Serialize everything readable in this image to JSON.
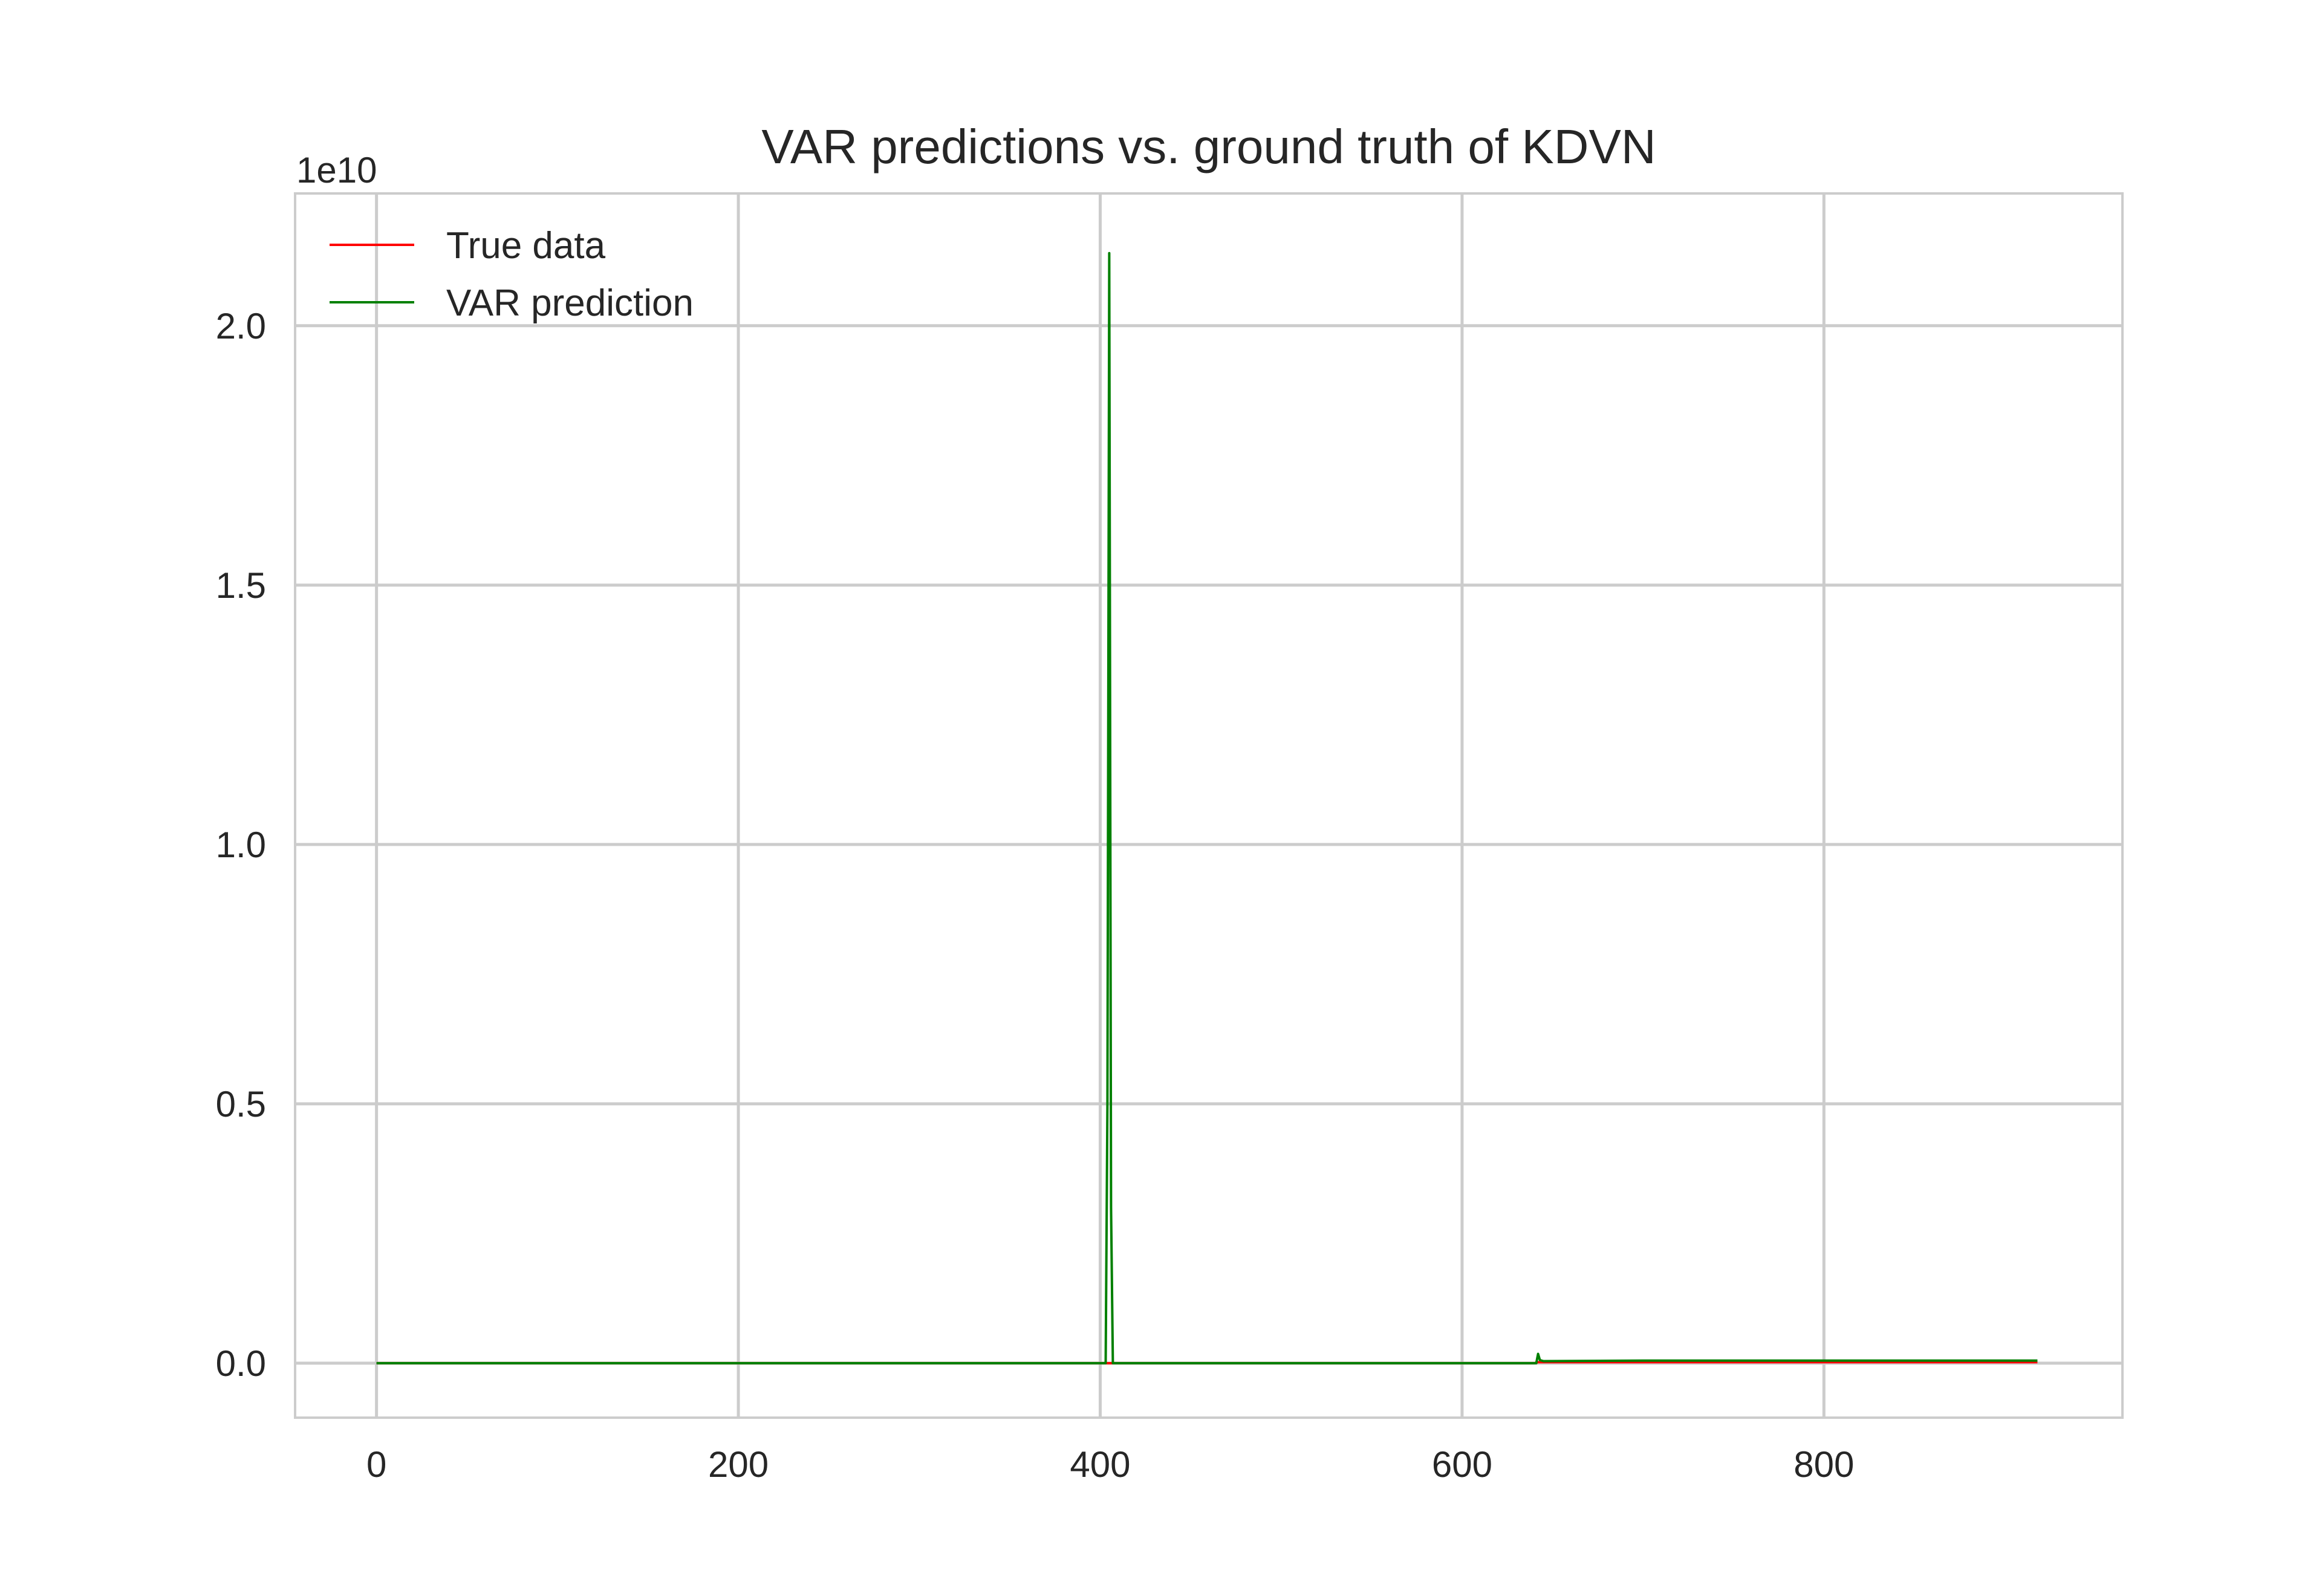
{
  "chart_data": {
    "type": "line",
    "title": "VAR predictions vs. ground truth of KDVN",
    "xlabel": "",
    "ylabel": "",
    "y_offset_label": "1e10",
    "xlim": [
      -45,
      965
    ],
    "ylim": [
      -0.105,
      2.255
    ],
    "x_ticks": [
      0,
      200,
      400,
      600,
      800
    ],
    "x_tick_labels": [
      "0",
      "200",
      "400",
      "600",
      "800"
    ],
    "y_ticks": [
      0.0,
      0.5,
      1.0,
      1.5,
      2.0
    ],
    "y_tick_labels": [
      "0.0",
      "0.5",
      "1.0",
      "1.5",
      "2.0"
    ],
    "grid": true,
    "legend_position": "upper-left",
    "series": [
      {
        "name": "True data",
        "color": "#ff0000",
        "x": [
          0,
          200,
          400,
          404,
          406,
          408,
          600,
          640,
          642,
          645,
          700,
          800,
          918
        ],
        "y": [
          0,
          0,
          0,
          0,
          0,
          0,
          0,
          0,
          0.002,
          0.002,
          0.002,
          0.002,
          0.002
        ]
      },
      {
        "name": "VAR prediction",
        "color": "#008000",
        "x": [
          0,
          200,
          400,
          403,
          404,
          405,
          406,
          407,
          600,
          641,
          642,
          643,
          645,
          700,
          800,
          918
        ],
        "y": [
          0,
          0,
          0,
          0,
          0.5,
          2.14,
          0.3,
          0,
          0,
          0,
          0.018,
          0.006,
          0.004,
          0.005,
          0.005,
          0.005
        ]
      }
    ]
  }
}
